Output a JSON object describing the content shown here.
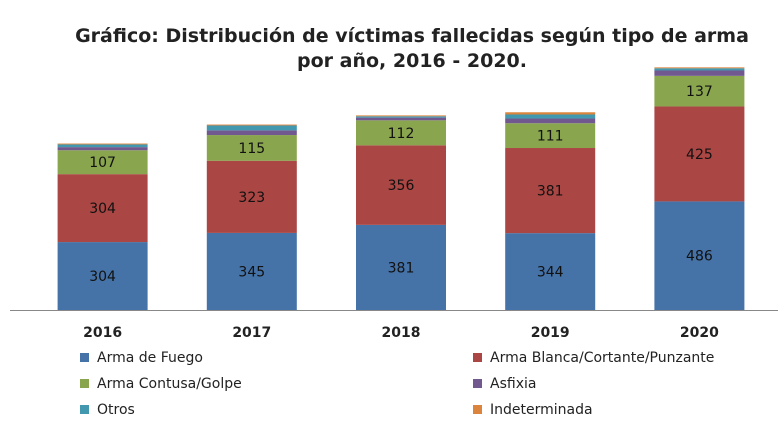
{
  "chart_data": {
    "type": "bar",
    "stacked": true,
    "title_lines": [
      "Gráfico: Distribución de víctimas fallecidas según tipo de arma",
      "por año, 2016 - 2020."
    ],
    "categories": [
      "2016",
      "2017",
      "2018",
      "2019",
      "2020"
    ],
    "series": [
      {
        "name": "Arma de Fuego",
        "color": "#4572A7",
        "values": [
          304,
          345,
          381,
          344,
          486
        ],
        "labeled": true
      },
      {
        "name": "Arma Blanca/Cortante/Punzante",
        "color": "#AA4643",
        "values": [
          304,
          323,
          356,
          381,
          425
        ],
        "labeled": true
      },
      {
        "name": "Arma Contusa/Golpe",
        "color": "#89A54E",
        "values": [
          107,
          115,
          112,
          111,
          137
        ],
        "labeled": true
      },
      {
        "name": "Asfixia",
        "color": "#71588F",
        "values": [
          14,
          21,
          12,
          21,
          24
        ],
        "labeled": false
      },
      {
        "name": "Otros",
        "color": "#4198AF",
        "values": [
          12,
          22,
          6,
          18,
          10
        ],
        "labeled": false
      },
      {
        "name": "Indeterminada",
        "color": "#DB843D",
        "values": [
          4,
          4,
          4,
          10,
          4
        ],
        "labeled": false
      }
    ],
    "ylim": [
      0,
      1110
    ],
    "xlabel": "",
    "ylabel": "",
    "grid": false,
    "legend": "bottom"
  }
}
